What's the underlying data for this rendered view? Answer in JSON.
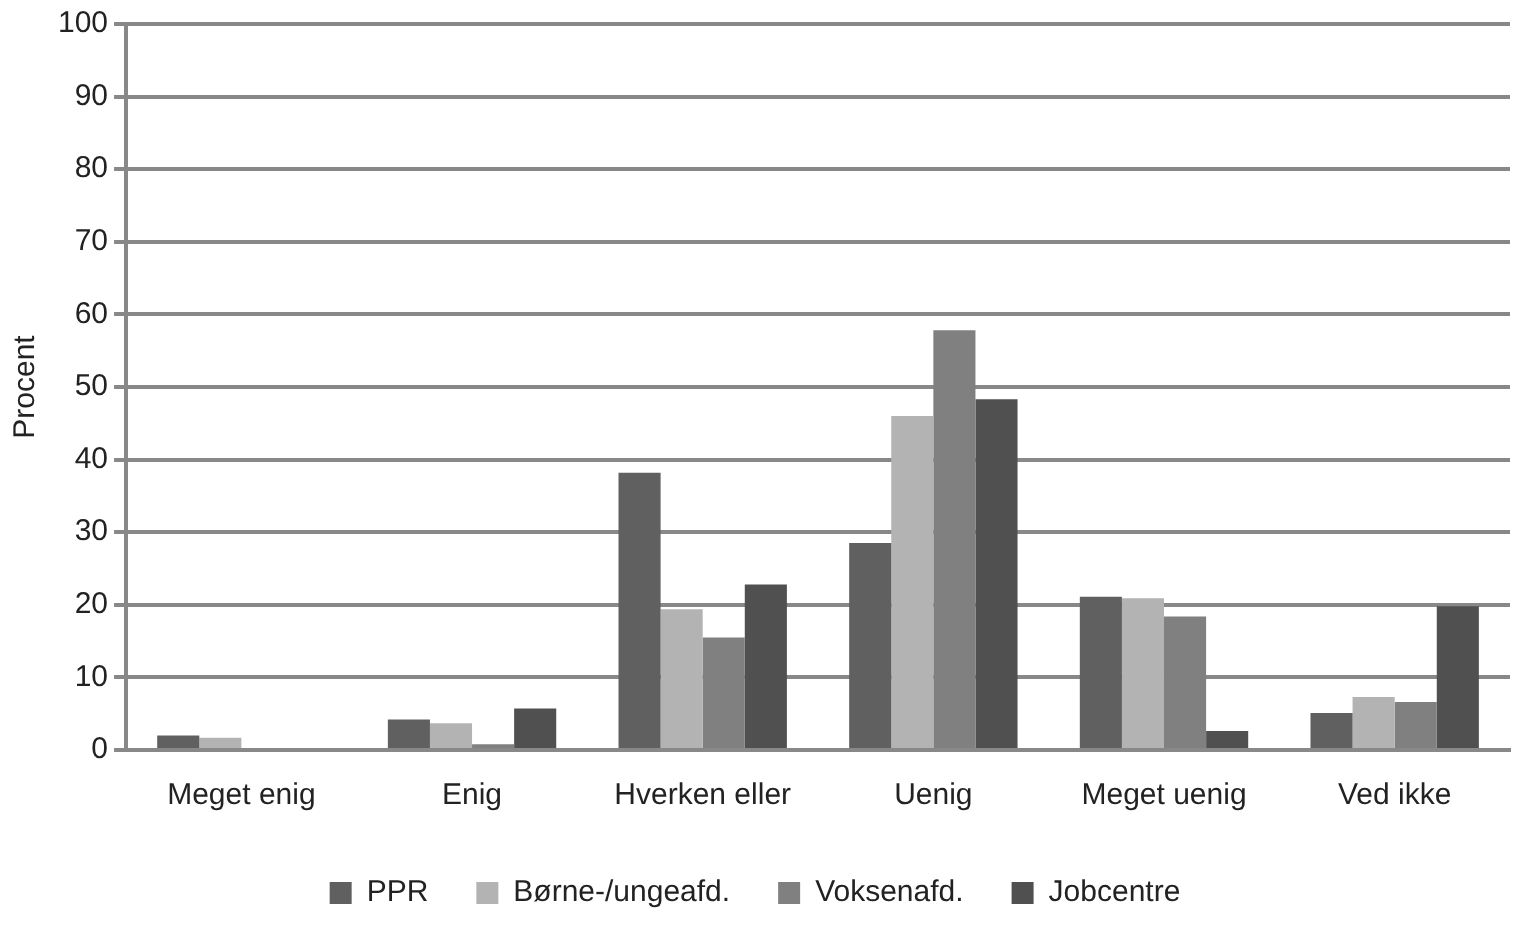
{
  "chart_data": {
    "type": "bar",
    "ylabel": "Procent",
    "categories": [
      "Meget enig",
      "Enig",
      "Hverken eller",
      "Uenig",
      "Meget uenig",
      "Ved ikke"
    ],
    "series": [
      {
        "name": "PPR",
        "color": "#606060",
        "values": [
          2,
          4.2,
          38.2,
          28.5,
          21.1,
          5.1
        ]
      },
      {
        "name": "Børne-/ungeafd.",
        "color": "#b3b3b3",
        "values": [
          1.7,
          3.7,
          19.4,
          46,
          20.9,
          7.3
        ]
      },
      {
        "name": "Voksenafd.",
        "color": "#808080",
        "values": [
          0,
          0.8,
          15.5,
          57.8,
          18.4,
          6.6
        ]
      },
      {
        "name": "Jobcentre",
        "color": "#505050",
        "values": [
          0,
          5.7,
          22.8,
          48.3,
          2.6,
          19.8
        ]
      }
    ],
    "ylim": [
      0,
      100
    ],
    "yticks": [
      0,
      10,
      20,
      30,
      40,
      50,
      60,
      70,
      80,
      90,
      100
    ],
    "grid": "y",
    "legend": "bottom"
  }
}
